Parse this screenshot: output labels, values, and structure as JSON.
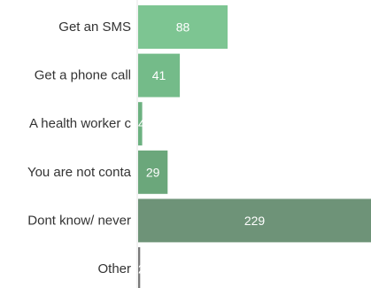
{
  "chart_data": {
    "type": "bar",
    "orientation": "horizontal",
    "categories": [
      "Get an SMS",
      "Get a phone call",
      "A health worker c",
      "You are not conta",
      "Dont know/ never",
      "Other"
    ],
    "values": [
      88,
      41,
      4,
      29,
      229,
      2
    ],
    "value_labels": [
      "88",
      "41",
      "4",
      "29",
      "229",
      "2"
    ],
    "title": "",
    "xlabel": "",
    "ylabel": "",
    "xlim": [
      0,
      229
    ],
    "grid": false,
    "legend": "none",
    "colors": [
      "#7dc592",
      "#74bb89",
      "#6cb180",
      "#6ba77b",
      "#6e9378",
      "#7a7a7a"
    ]
  }
}
